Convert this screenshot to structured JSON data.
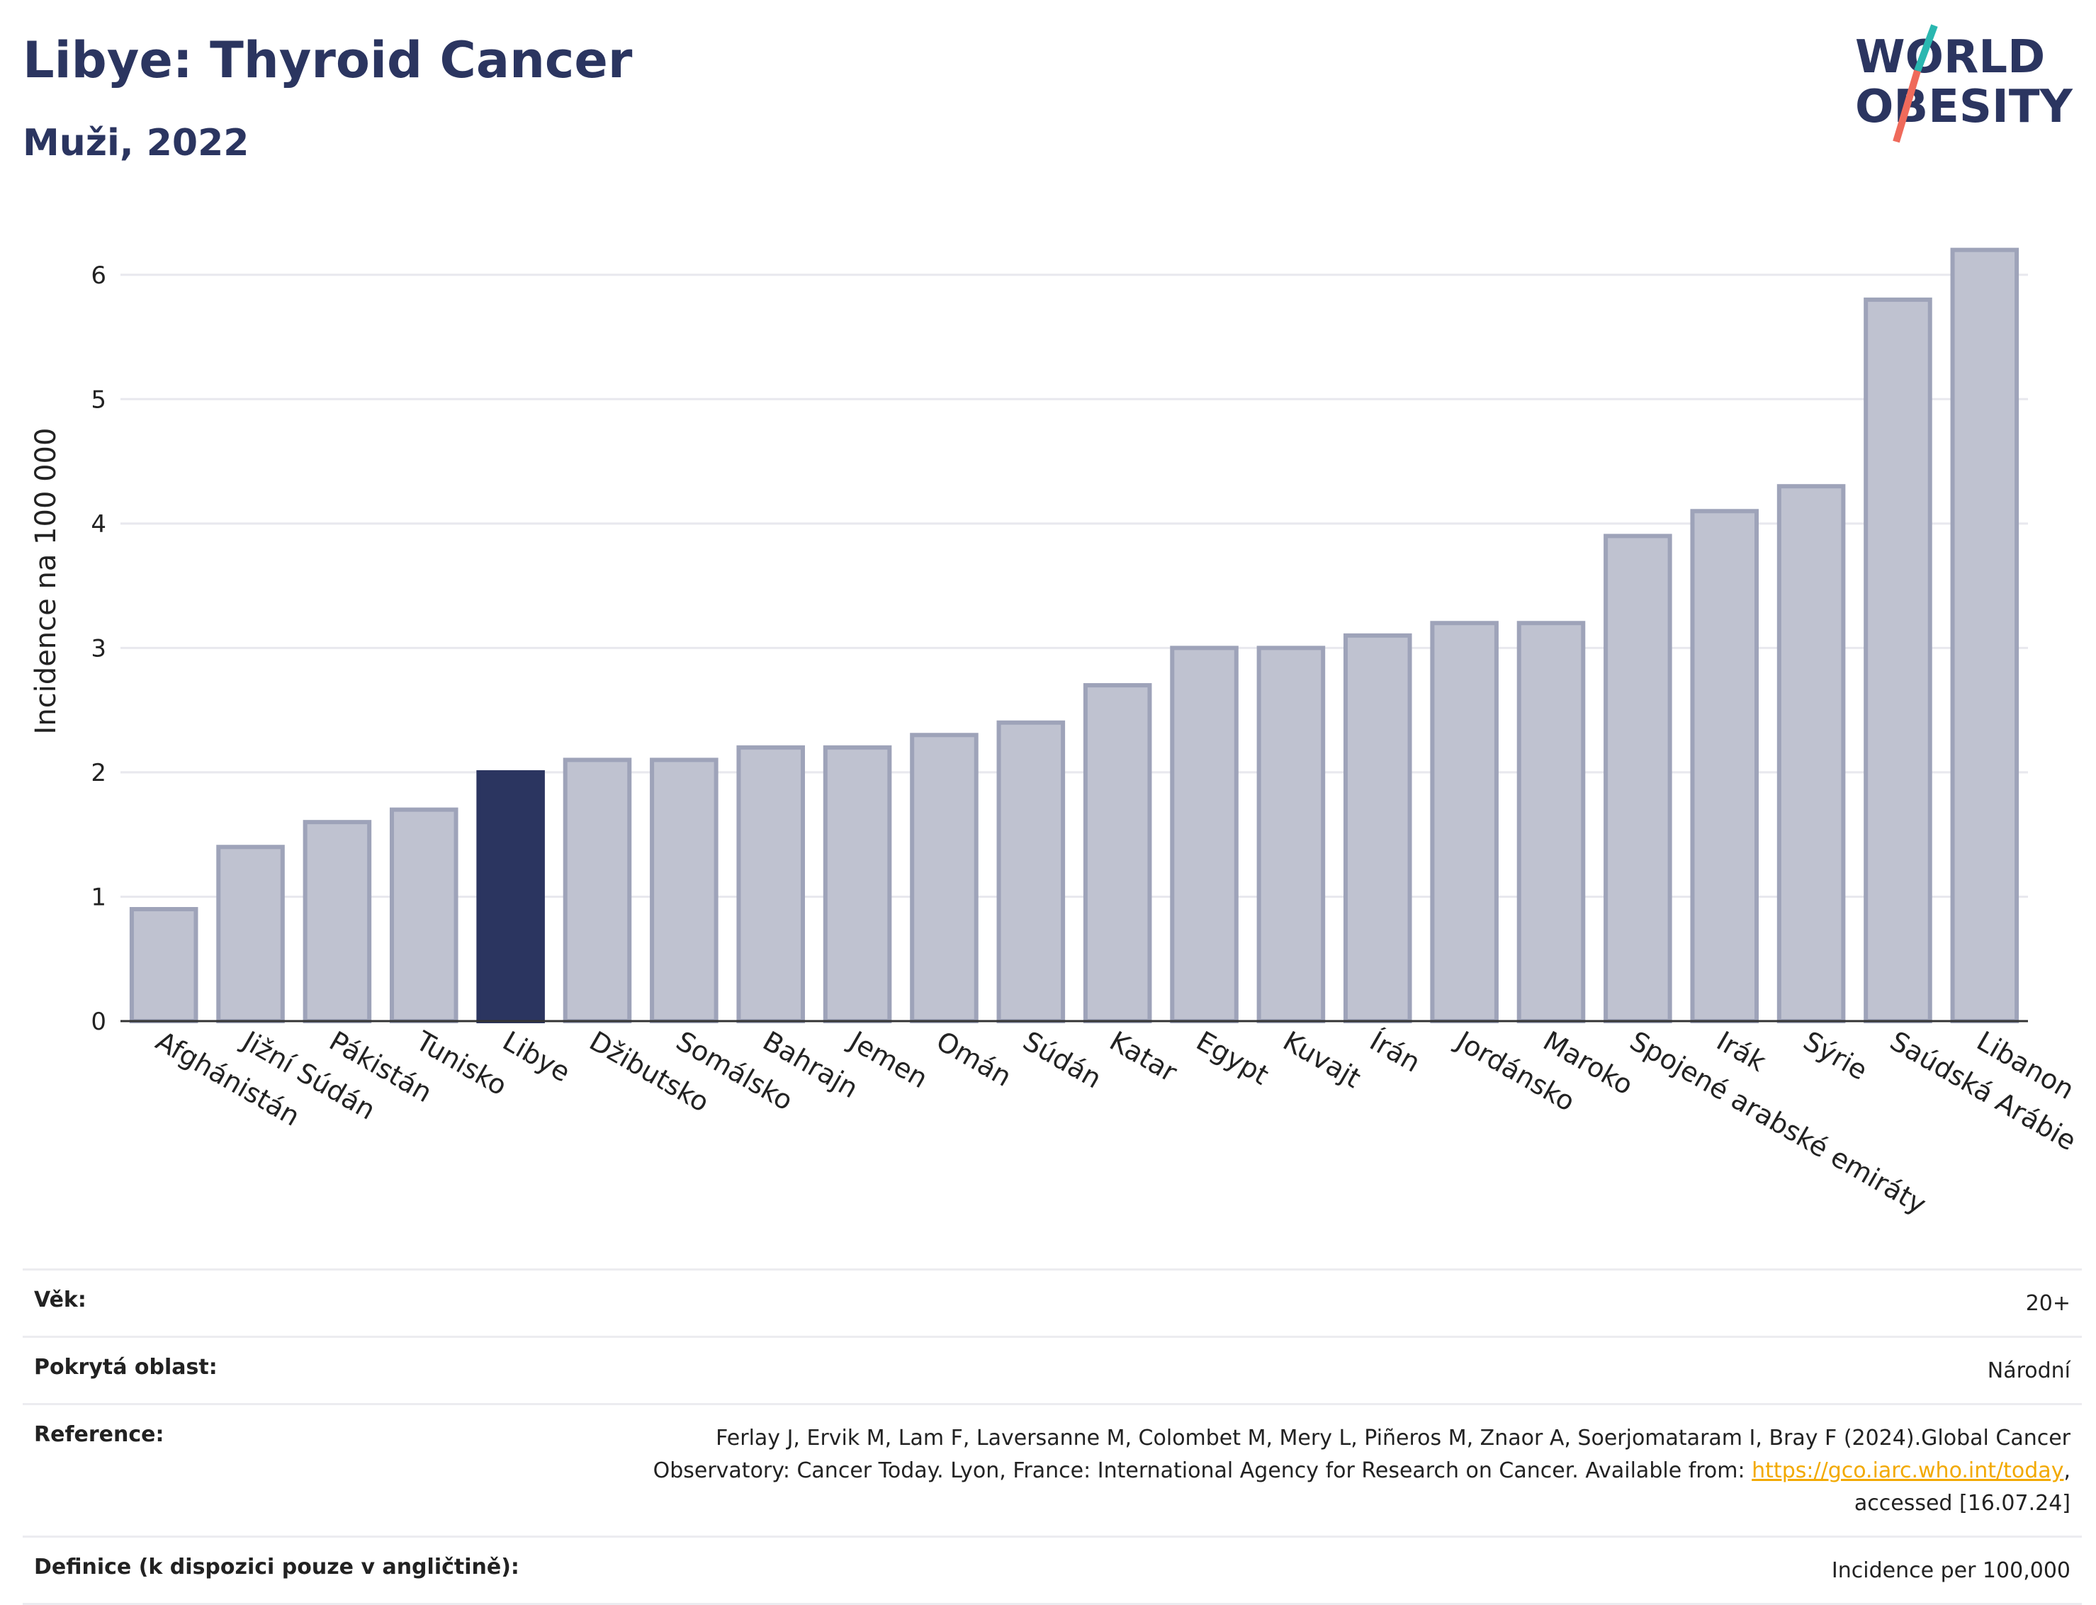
{
  "header": {
    "title": "Libye: Thyroid Cancer",
    "subtitle": "Muži, 2022"
  },
  "logo": {
    "line1": "WORLD",
    "line2": "OBESITY"
  },
  "chart_data": {
    "type": "bar",
    "ylabel": "Incidence na 100 000",
    "xlabel": "",
    "ylim": [
      0,
      6.5
    ],
    "yticks": [
      0,
      1,
      2,
      3,
      4,
      5,
      6
    ],
    "grid": true,
    "categories": [
      "Afghánistán",
      "Jižní Súdán",
      "Pákistán",
      "Tunisko",
      "Libye",
      "Džibutsko",
      "Somálsko",
      "Bahrajn",
      "Jemen",
      "Omán",
      "Súdán",
      "Katar",
      "Egypt",
      "Kuvajt",
      "Írán",
      "Jordánsko",
      "Maroko",
      "Spojené arabské emiráty",
      "Irák",
      "Sýrie",
      "Saúdská Arábie",
      "Libanon"
    ],
    "values": [
      0.9,
      1.4,
      1.6,
      1.7,
      2.0,
      2.1,
      2.1,
      2.2,
      2.2,
      2.3,
      2.4,
      2.7,
      3.0,
      3.0,
      3.1,
      3.2,
      3.2,
      3.9,
      4.1,
      4.3,
      5.8,
      6.2
    ],
    "highlight": "Libye",
    "colors": {
      "bar": "#bfc2d0",
      "bar_border": "#9ea3b9",
      "highlight": "#2b3560"
    }
  },
  "info": [
    {
      "key": "Věk:",
      "value": "20+"
    },
    {
      "key": "Pokrytá oblast:",
      "value": "Národní"
    },
    {
      "key": "Reference:",
      "value": "Ferlay J, Ervik M, Lam F, Laversanne M, Colombet M, Mery L, Piñeros M, Znaor A, Soerjomataram I, Bray F (2024).Global Cancer Observatory: Cancer Today. Lyon, France: International Agency for Research on Cancer. Available from: ",
      "link": "https://gco.iarc.who.int/today",
      "suffix": ", accessed [16.07.24]"
    },
    {
      "key": "Definice (k dispozici pouze v angličtině):",
      "value": "Incidence per 100,000"
    }
  ]
}
